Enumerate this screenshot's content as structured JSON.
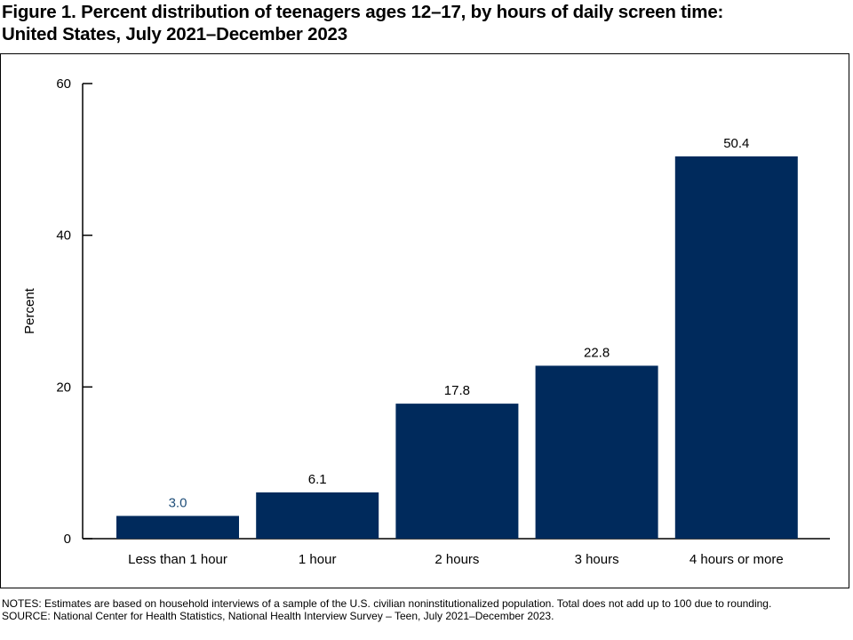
{
  "title_lines": [
    "Figure 1. Percent distribution of teenagers ages 12–17, by hours of daily screen time:",
    "United States, July 2021–December 2023"
  ],
  "chart_data": {
    "type": "bar",
    "categories": [
      "Less than 1 hour",
      "1 hour",
      "2 hours",
      "3 hours",
      "4 hours or more"
    ],
    "values": [
      3.0,
      6.1,
      17.8,
      22.8,
      50.4
    ],
    "value_labels": [
      "3.0",
      "6.1",
      "17.8",
      "22.8",
      "50.4"
    ],
    "ylabel": "Percent",
    "xlabel": "",
    "ylim": [
      0,
      60
    ],
    "yticks": [
      0,
      20,
      40,
      60
    ],
    "grid": false,
    "bar_color": "#002a5c",
    "first_label_color": "#1f4e79"
  },
  "notes": "NOTES: Estimates are based on household interviews of a sample of the U.S. civilian noninstitutionalized population. Total does not add up to 100 due to rounding.",
  "source": "SOURCE: National Center for Health Statistics, National Health Interview Survey – Teen, July 2021–December 2023."
}
